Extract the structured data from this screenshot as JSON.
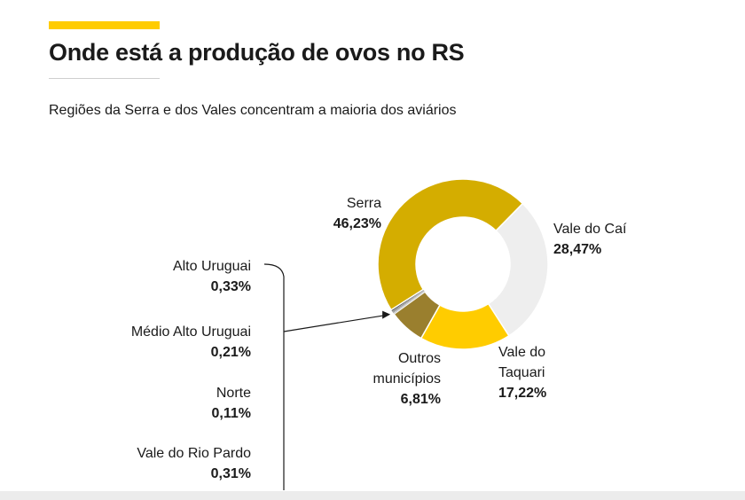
{
  "header": {
    "title": "Onde está a produção de ovos no RS",
    "subtitle": "Regiões da Serra e dos Vales concentram a maioria dos aviários",
    "accent_color": "#ffcc00"
  },
  "chart_data": {
    "type": "pie",
    "title": "Onde está a produção de ovos no RS",
    "subtitle": "Regiões da Serra e dos Vales concentram a maioria dos aviários",
    "donut": true,
    "slices": [
      {
        "name": "Vale do Caí",
        "label_lines": [
          "Vale do Caí"
        ],
        "value": 28.47,
        "display": "28,47%",
        "color": "#eeeeee"
      },
      {
        "name": "Vale do Taquari",
        "label_lines": [
          "Vale do",
          "Taquari"
        ],
        "value": 17.22,
        "display": "17,22%",
        "color": "#ffcc00"
      },
      {
        "name": "Outros municípios",
        "label_lines": [
          "Outros",
          "municípios"
        ],
        "value": 6.81,
        "display": "6,81%",
        "color": "#9a7f2e"
      },
      {
        "name": "Vale do Rio Pardo",
        "label_lines": [
          "Vale do Rio Pardo"
        ],
        "value": 0.31,
        "display": "0,31%",
        "color": "#cccccc",
        "callout": true
      },
      {
        "name": "Norte",
        "label_lines": [
          "Norte"
        ],
        "value": 0.11,
        "display": "0,11%",
        "color": "#1a1a1a",
        "callout": true
      },
      {
        "name": "Médio Alto Uruguai",
        "label_lines": [
          "Médio Alto Uruguai"
        ],
        "value": 0.21,
        "display": "0,21%",
        "color": "#808080",
        "callout": true
      },
      {
        "name": "Alto Uruguai",
        "label_lines": [
          "Alto Uruguai"
        ],
        "value": 0.33,
        "display": "0,33%",
        "color": "#555555",
        "callout": true
      },
      {
        "name": "Serra",
        "label_lines": [
          "Serra"
        ],
        "value": 46.23,
        "display": "46,23%",
        "color": "#d4ad00"
      }
    ],
    "callout_order": [
      "Alto Uruguai",
      "Médio Alto Uruguai",
      "Norte",
      "Vale do Rio Pardo"
    ]
  }
}
